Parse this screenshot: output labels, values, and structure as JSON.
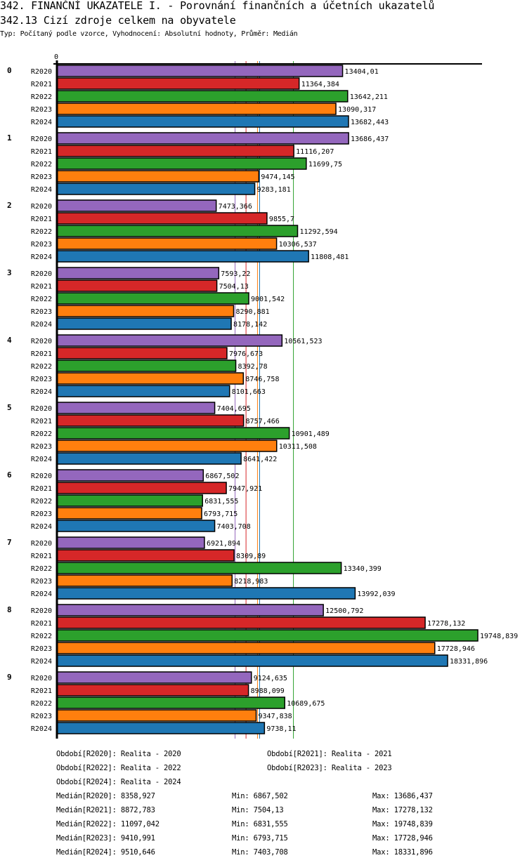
{
  "header": {
    "title": "342. FINANČNÍ UKAZATELE I. - Porovnání finančních a účetních ukazatelů",
    "subtitle": "342.13 Cizí zdroje celkem na obyvatele",
    "meta": "Typ: Počítaný podle vzorce, Vyhodnocení: Absolutní hodnoty, Průměr: Medián"
  },
  "chart_data": {
    "type": "bar",
    "orientation": "horizontal",
    "title": "342.13 Cizí zdroje celkem na obyvatele",
    "xlabel": "",
    "ylabel": "",
    "x_tick_labels": [
      "0"
    ],
    "xlim": [
      0,
      19748.839
    ],
    "grid": false,
    "categories": [
      "0",
      "1",
      "2",
      "3",
      "4",
      "5",
      "6",
      "7",
      "8",
      "9"
    ],
    "series": [
      {
        "name": "R2020",
        "color": "#9467bd",
        "values": [
          13404.01,
          13686.437,
          7473.366,
          7593.22,
          10561.523,
          7404.695,
          6867.502,
          6921.894,
          12500.792,
          9124.635
        ],
        "labels": [
          "13404,01",
          "13686,437",
          "7473,366",
          "7593,22",
          "10561,523",
          "7404,695",
          "6867,502",
          "6921,894",
          "12500,792",
          "9124,635"
        ]
      },
      {
        "name": "R2021",
        "color": "#d62728",
        "values": [
          11364.384,
          11116.207,
          9855.7,
          7504.13,
          7976.673,
          8757.466,
          7947.921,
          8309.89,
          17278.132,
          8988.099
        ],
        "labels": [
          "11364,384",
          "11116,207",
          "9855,7",
          "7504,13",
          "7976,673",
          "8757,466",
          "7947,921",
          "8309,89",
          "17278,132",
          "8988,099"
        ]
      },
      {
        "name": "R2022",
        "color": "#2ca02c",
        "values": [
          13642.211,
          11699.75,
          11292.594,
          9001.542,
          8392.78,
          10901.489,
          6831.555,
          13340.399,
          19748.839,
          10689.675
        ],
        "labels": [
          "13642,211",
          "11699,75",
          "11292,594",
          "9001,542",
          "8392,78",
          "10901,489",
          "6831,555",
          "13340,399",
          "19748,839",
          "10689,675"
        ]
      },
      {
        "name": "R2023",
        "color": "#ff7f0e",
        "values": [
          13090.317,
          9474.145,
          10306.537,
          8290.881,
          8746.758,
          10311.508,
          6793.715,
          8218.983,
          17728.946,
          9347.838
        ],
        "labels": [
          "13090,317",
          "9474,145",
          "10306,537",
          "8290,881",
          "8746,758",
          "10311,508",
          "6793,715",
          "8218,983",
          "17728,946",
          "9347,838"
        ]
      },
      {
        "name": "R2024",
        "color": "#1f77b4",
        "values": [
          13682.443,
          9283.181,
          11808.481,
          8178.142,
          8101.663,
          8641.422,
          7403.708,
          13992.039,
          18331.896,
          9738.11
        ],
        "labels": [
          "13682,443",
          "9283,181",
          "11808,481",
          "8178,142",
          "8101,663",
          "8641,422",
          "7403,708",
          "13992,039",
          "18331,896",
          "9738,11"
        ]
      }
    ],
    "median_lines": [
      {
        "series": "R2020",
        "value": 8358.927,
        "color": "#9467bd"
      },
      {
        "series": "R2021",
        "value": 8872.783,
        "color": "#d62728"
      },
      {
        "series": "R2022",
        "value": 11097.042,
        "color": "#2ca02c"
      },
      {
        "series": "R2023",
        "value": 9410.991,
        "color": "#ff7f0e"
      },
      {
        "series": "R2024",
        "value": 9510.646,
        "color": "#1f77b4"
      }
    ],
    "legend_placement": "bottom"
  },
  "legend": {
    "periods": [
      "Období[R2020]: Realita - 2020",
      "Období[R2021]: Realita - 2021",
      "Období[R2022]: Realita - 2022",
      "Období[R2023]: Realita - 2023",
      "Období[R2024]: Realita - 2024"
    ],
    "stats": [
      {
        "median": "Medián[R2020]: 8358,927",
        "min": "Min: 6867,502",
        "max": "Max: 13686,437"
      },
      {
        "median": "Medián[R2021]: 8872,783",
        "min": "Min: 7504,13",
        "max": "Max: 17278,132"
      },
      {
        "median": "Medián[R2022]: 11097,042",
        "min": "Min: 6831,555",
        "max": "Max: 19748,839"
      },
      {
        "median": "Medián[R2023]: 9410,991",
        "min": "Min: 6793,715",
        "max": "Max: 17728,946"
      },
      {
        "median": "Medián[R2024]: 9510,646",
        "min": "Min: 7403,708",
        "max": "Max: 18331,896"
      }
    ]
  }
}
